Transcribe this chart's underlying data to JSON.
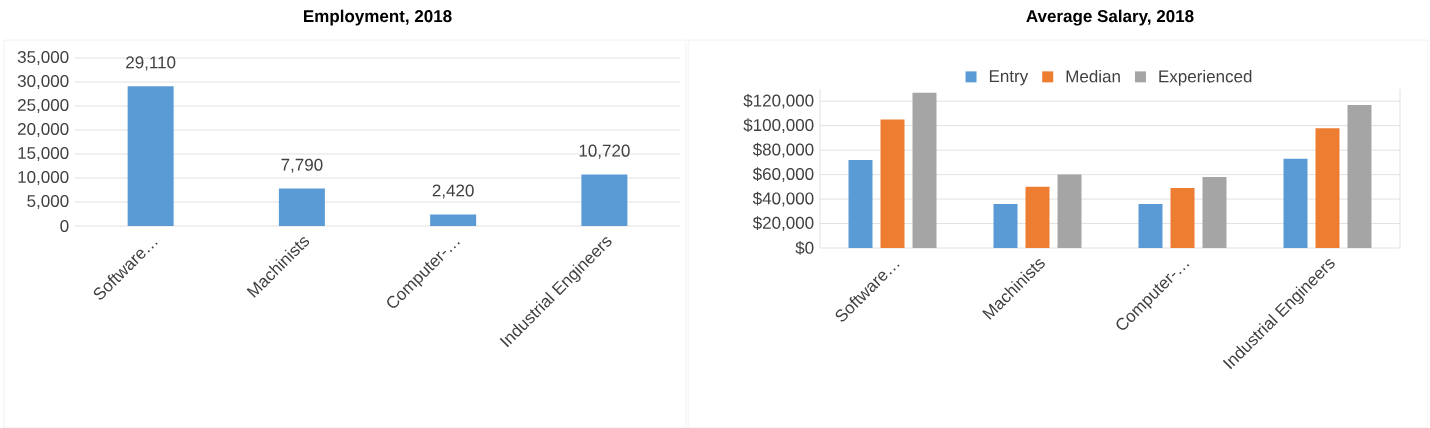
{
  "chart_data": [
    {
      "type": "bar",
      "title": "Employment, 2018",
      "categories": [
        "Software…",
        "Machinists",
        "Computer-…",
        "Industrial Engineers"
      ],
      "series": [
        {
          "color": "#5b9bd5",
          "values": [
            29110,
            7790,
            2420,
            10720
          ],
          "value_labels": [
            "29,110",
            "7,790",
            "2,420",
            "10,720"
          ]
        }
      ],
      "ylim": [
        0,
        35000
      ],
      "yticks": [
        {
          "value": 0,
          "label": "0"
        },
        {
          "value": 5000,
          "label": "5,000"
        },
        {
          "value": 10000,
          "label": "10,000"
        },
        {
          "value": 15000,
          "label": "15,000"
        },
        {
          "value": 20000,
          "label": "20,000"
        },
        {
          "value": 25000,
          "label": "25,000"
        },
        {
          "value": 30000,
          "label": "30,000"
        },
        {
          "value": 35000,
          "label": "35,000"
        }
      ],
      "grid": "y",
      "legend": false
    },
    {
      "type": "bar",
      "title": "Average Salary, 2018",
      "categories": [
        "Software…",
        "Machinists",
        "Computer-…",
        "Industrial Engineers"
      ],
      "series": [
        {
          "name": "Entry",
          "color": "#5b9bd5",
          "values": [
            72000,
            36000,
            36000,
            73000
          ]
        },
        {
          "name": "Median",
          "color": "#ed7d31",
          "values": [
            105000,
            50000,
            49000,
            98000
          ]
        },
        {
          "name": "Experienced",
          "color": "#a5a5a5",
          "values": [
            127000,
            60000,
            58000,
            117000
          ]
        }
      ],
      "ylim": [
        0,
        130000
      ],
      "yticks": [
        {
          "value": 0,
          "label": "$0"
        },
        {
          "value": 20000,
          "label": "$20,000"
        },
        {
          "value": 40000,
          "label": "$40,000"
        },
        {
          "value": 60000,
          "label": "$60,000"
        },
        {
          "value": 80000,
          "label": "$80,000"
        },
        {
          "value": 100000,
          "label": "$100,000"
        },
        {
          "value": 120000,
          "label": "$120,000"
        }
      ],
      "grid": "y",
      "legend": "top"
    }
  ]
}
